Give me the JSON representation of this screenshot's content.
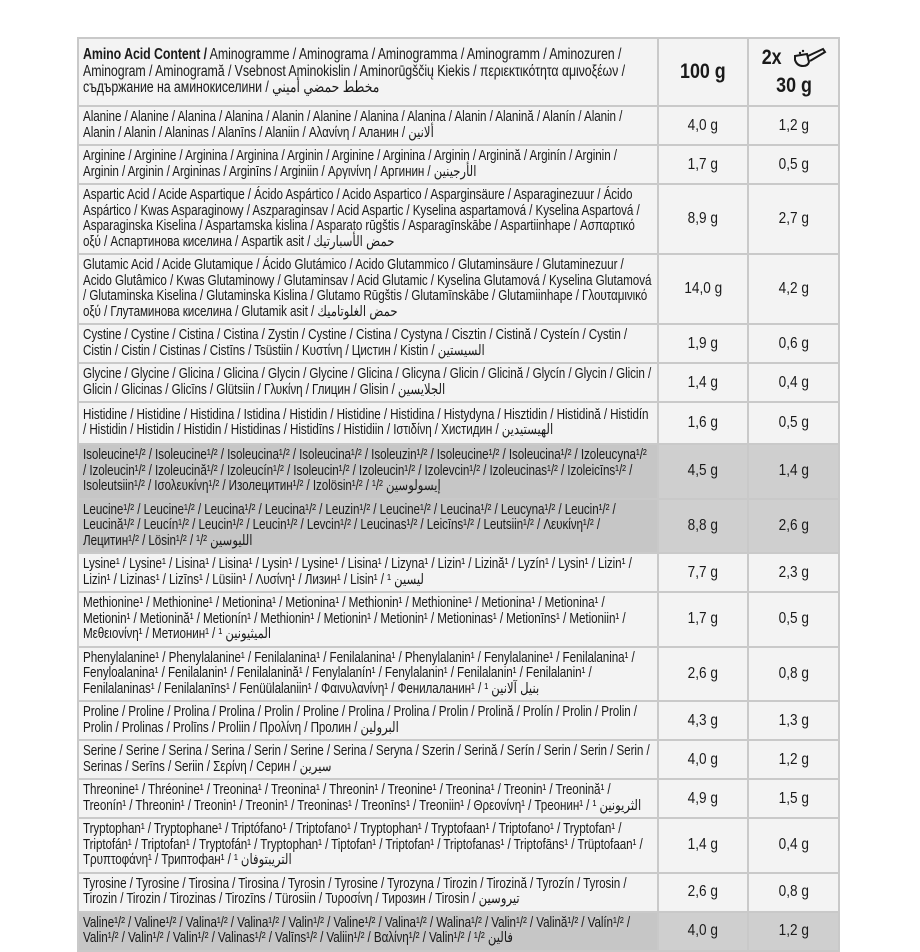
{
  "header": {
    "title_bold": "Amino Acid Content /",
    "title_rest": " Aminogramme / Aminograma / Aminogramma / Aminogramm / Aminozuren / Aminogram / Aminogramă / Vsebnost Aminokislin / Aminorūgščių Kiekis / περιεκτικότητα αμινοξέων / съдържание на аминокиселини / مخطط حمضي أميني",
    "col_100": "100 g",
    "col_serving_count": "2x",
    "col_serving": "30 g",
    "serving_icon": "scoop-icon"
  },
  "colors": {
    "cell": "#f3f3f3",
    "shaded": "#c6c6c6",
    "border": "#c9c9c9"
  },
  "rows": [
    {
      "name": "Alanine / Alanine / Alanina / Alanina / Alanin / Alanine / Alanina / Alanina / Alanin / Alanină / Alanín / Alanin / Alanin / Alanin / Alaninas / Alanīns / Alaniin / Αλανίνη / Аланин / ألانين",
      "per_100g": "4,0 g",
      "per_serving": "1,2 g",
      "shaded": false
    },
    {
      "name": "Arginine / Arginine / Arginina / Arginina / Arginin / Arginine / Arginina / Arginin / Arginină / Arginín / Arginin / Arginin / Arginin / Argininas / Arginīns / Arginiin / Αργινίνη / Аргинин / الأرجينين",
      "per_100g": "1,7 g",
      "per_serving": "0,5 g",
      "shaded": false
    },
    {
      "name": "Aspartic Acid / Acide Aspartique / Ácido Aspártico / Acido Aspartico / Asparginsäure / Asparaginezuur / Ácido Aspártico / Kwas Asparaginowy / Aszparaginsav / Acid Aspartic / Kyselina aspartamová / Kyselina Aspartová / Asparaginska Kiselina / Aspartamska kislina / Asparato rūgštis / Asparagīnskābe / Aspartiinhape / Ασπαρτικό οξύ / Аспартинова киселина / Aspartik asit / حمض الأسبارتيك",
      "per_100g": "8,9 g",
      "per_serving": "2,7 g",
      "shaded": false
    },
    {
      "name": "Glutamic Acid / Acide Glutamique / Ácido Glutámico / Acido Glutammico / Glutaminsäure / Glutaminezuur / Acido Glutâmico / Kwas Glutaminowy / Glutaminsav / Acid Glutamic / Kyselina Glutamová / Kyselina Glutamová / Glutaminska Kiselina / Glutaminska Kislina / Glutamo Rūgštis / Glutamīnskābe / Glutamiinhape / Γλουταμινικό οξύ / Глутаминова киселина / Glutamik asit / حمض الغلوتاميك",
      "per_100g": "14,0 g",
      "per_serving": "4,2 g",
      "shaded": false
    },
    {
      "name": "Cystine / Cystine / Cistina / Cistina / Zystin / Cystine / Cistina / Cystyna / Cisztin / Cistină / Cysteín / Cystin / Cistin / Cistin / Cistinas / Cistīns / Tsüstiin / Κυστίνη / Цистин / Kistin / السيستين",
      "per_100g": "1,9 g",
      "per_serving": "0,6 g",
      "shaded": false
    },
    {
      "name": "Glycine / Glycine / Glicina / Glicina / Glycin / Glycine / Glicina / Glicyna / Glicin / Glicină / Glycín / Glycin / Glicin / Glicin / Glicinas / Glicīns / Glütsiin / Γλυκίνη / Глицин / Glisin / الجلايسين",
      "per_100g": "1,4 g",
      "per_serving": "0,4 g",
      "shaded": false
    },
    {
      "name": "Histidine / Histidine / Histidina / Istidina / Histidin / Histidine / Histidina / Histydyna / Hisztidin / Histidină / Histidín / Histidin / Histidin / Histidin / Histidinas / Histidīns / Histidiin / Ιστιδίνη / Хистидин / الهيستيدين",
      "per_100g": "1,6 g",
      "per_serving": "0,5 g",
      "shaded": false
    },
    {
      "name": "Isoleucine¹/² / Isoleucine¹/² / Isoleucina¹/² / Isoleucina¹/² / Isoleuzin¹/² / Isoleucine¹/² / Isoleucina¹/² / Izoleucyna¹/² / Izoleucin¹/² / Izoleucină¹/² / Izoleucín¹/² / Isoleucin¹/² / Izoleucin¹/² / Izolevcin¹/² / Izoleucinas¹/² / Izoleicīns¹/² / Isoleutsiin¹/² / Ισολευκίνη¹/² / Изолецитин¹/² / Izolösin¹/² / ¹/² إيسولوسين",
      "per_100g": "4,5 g",
      "per_serving": "1,4 g",
      "shaded": true
    },
    {
      "name": "Leucine¹/² / Leucine¹/² / Leucina¹/² / Leucina¹/² / Leuzin¹/² / Leucine¹/² / Leucina¹/² / Leucyna¹/² / Leucin¹/² / Leucină¹/² / Leucín¹/² / Leucin¹/² / Leucin¹/² / Levcin¹/² / Leucinas¹/² / Leicīns¹/² / Leutsiin¹/² / Λευκίνη¹/² / Лецитин¹/² / Lösin¹/² / ¹/² الليوسين",
      "per_100g": "8,8 g",
      "per_serving": "2,6 g",
      "shaded": true
    },
    {
      "name": "Lysine¹ / Lysine¹ / Lisina¹ / Lisina¹ / Lysin¹ / Lysine¹ / Lisina¹ / Lizyna¹ / Lizin¹ / Lizină¹ / Lyzín¹ / Lysin¹ / Lizin¹ / Lizin¹ / Lizinas¹ / Lizīns¹ / Lüsiin¹ / Λυσίνη¹ / Лизин¹ / Lisin¹ / ¹ ليسين",
      "per_100g": "7,7 g",
      "per_serving": "2,3 g",
      "shaded": false
    },
    {
      "name": "Methionine¹ / Methionine¹ / Metionina¹ / Metionina¹ / Methionin¹ / Methionine¹ / Metionina¹ / Metionina¹ / Metionin¹ / Metionină¹ / Metionín¹ / Methionin¹ / Metionin¹ / Metionin¹ / Metioninas¹ / Metionīns¹ / Metioniin¹ / Μεθειονίνη¹ / Метионин¹ / ¹ الميثيونين",
      "per_100g": "1,7 g",
      "per_serving": "0,5 g",
      "shaded": false
    },
    {
      "name": "Phenylalanine¹ / Phenylalanine¹ / Fenilalanina¹ / Fenilalanina¹ / Phenylalanin¹ / Fenylalanine¹ / Fenilalanina¹ / Fenyloalanina¹ / Fenilalanin¹ / Fenilalanină¹ / Fenylalanín¹ / Fenylalanin¹ / Fenilalanin¹ / Fenilalanin¹ / Fenilalaninas¹ / Fenilalanīns¹ / Fenüülalaniin¹ / Φαινυλανίνη¹ / Фенилаланин¹ / ¹ بنيل آلانين",
      "per_100g": "2,6 g",
      "per_serving": "0,8 g",
      "shaded": false
    },
    {
      "name": "Proline / Proline / Prolina / Prolina / Prolin / Proline / Prolina / Prolina / Prolin / Prolină / Prolín / Prolin / Prolin / Prolin / Prolinas / Prolīns / Proliin / Προλίνη / Пролин / البرولين",
      "per_100g": "4,3 g",
      "per_serving": "1,3 g",
      "shaded": false
    },
    {
      "name": "Serine / Serine / Serina / Serina / Serin / Serine / Serina / Seryna / Szerin / Serină / Serín / Serin / Serin / Serin / Serinas / Serīns / Seriin / Σερίνη / Серин / سيرين",
      "per_100g": "4,0 g",
      "per_serving": "1,2 g",
      "shaded": false
    },
    {
      "name": "Threonine¹ / Thréonine¹ / Treonina¹ / Treonina¹ / Threonin¹ / Treonine¹ / Treonina¹ / Treonin¹ / Treonină¹ / Treonín¹ / Threonin¹ / Treonin¹ / Treonin¹ / Treoninas¹ / Treonīns¹ / Treoniin¹ / Θρεονίνη¹ / Треонин¹ / ¹ الثريونين",
      "per_100g": "4,9 g",
      "per_serving": "1,5 g",
      "shaded": false
    },
    {
      "name": "Tryptophan¹ / Tryptophane¹ / Triptófano¹ / Triptofano¹ / Tryptophan¹ / Tryptofaan¹ / Triptofano¹ / Tryptofan¹ / Triptofán¹ / Triptofan¹ / Tryptofán¹ / Tryptophan¹ / Tiptofan¹ / Triptofan¹ / Triptofanas¹ / Triptofāns¹ / Trüptofaan¹ / Τρυπτοφάνη¹ / Триптофан¹ / ¹ التريبتوفان",
      "per_100g": "1,4 g",
      "per_serving": "0,4 g",
      "shaded": false
    },
    {
      "name": "Tyrosine / Tyrosine / Tirosina / Tirosina / Tyrosin / Tyrosine / Tyrozyna / Tirozin / Tirozină / Tyrozín / Tyrosin / Tirozin / Tirozin / Tirozinas / Tirozīns / Türosiin / Τυροσίνη / Тирозин / Tirosin / تيروسين",
      "per_100g": "2,6 g",
      "per_serving": "0,8 g",
      "shaded": false
    },
    {
      "name": "Valine¹/² / Valine¹/² / Valina¹/² / Valina¹/² / Valin¹/² / Valine¹/² / Valina¹/² / Walina¹/² / Valin¹/² / Valină¹/² / Valín¹/² / Valin¹/² / Valin¹/² / Valin¹/² / Valinas¹/² / Valīns¹/² / Valiin¹/² / Βαλίνη¹/² / Valin¹/² / ¹/² فالين",
      "per_100g": "4,0 g",
      "per_serving": "1,2 g",
      "shaded": true
    }
  ]
}
